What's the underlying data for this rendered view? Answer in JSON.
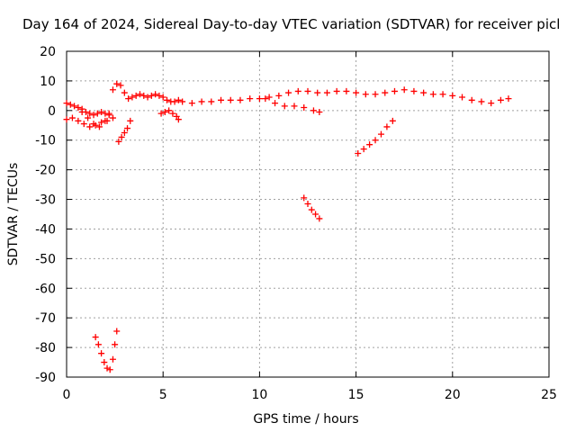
{
  "chart_data": {
    "type": "scatter",
    "title": "Day 164 of 2024, Sidereal Day-to-day VTEC variation (SDTVAR) for receiver picl",
    "xlabel": "GPS time / hours",
    "ylabel": "SDTVAR / TECUs",
    "xlim": [
      0,
      25
    ],
    "ylim": [
      -90,
      20
    ],
    "xticks": [
      "0",
      "5",
      "10",
      "15",
      "20",
      "25"
    ],
    "yticks": [
      "-90",
      "-80",
      "-70",
      "-60",
      "-50",
      "-40",
      "-30",
      "-20",
      "-10",
      "0",
      "10",
      "20"
    ],
    "grid": true,
    "marker": "plus",
    "color": "#ff0000",
    "series": [
      {
        "x": [
          0.0,
          0.2,
          0.4,
          0.6,
          0.8,
          1.0,
          1.2,
          1.4,
          1.6,
          1.8,
          2.0,
          2.2,
          2.4,
          2.6,
          2.8,
          3.0,
          3.2,
          3.4,
          3.6,
          3.8,
          4.0,
          4.2,
          4.4,
          4.6,
          4.8,
          5.0,
          5.2,
          5.4,
          5.6,
          5.8,
          6.0,
          6.5,
          7.0,
          7.5,
          8.0,
          8.5,
          9.0,
          9.5,
          10.0,
          10.5,
          11.0,
          11.5,
          12.0,
          12.5,
          13.0,
          13.5,
          14.0,
          14.5,
          15.0,
          15.5,
          16.0,
          16.5,
          17.0,
          17.5,
          18.0,
          18.5,
          19.0,
          19.5,
          20.0,
          20.5,
          21.0,
          21.5,
          22.0,
          22.5,
          22.9
        ],
        "y": [
          2.5,
          2,
          1.5,
          1,
          0.5,
          -0.5,
          -1,
          -1.5,
          -1,
          -0.5,
          -1,
          -1.5,
          7,
          9,
          8.5,
          6,
          4,
          4.5,
          5,
          5.5,
          5,
          4.5,
          5,
          5.5,
          5,
          4.5,
          3.5,
          3,
          3,
          3.5,
          3,
          2.5,
          3,
          3,
          3.5,
          3.5,
          3.5,
          4,
          4,
          4.5,
          5,
          6,
          6.5,
          6.5,
          6,
          6,
          6.5,
          6.5,
          6,
          5.5,
          5.5,
          6,
          6.5,
          7,
          6.5,
          6,
          5.5,
          5.5,
          5,
          4.5,
          3.5,
          3,
          2.5,
          3.5,
          4
        ]
      },
      {
        "x": [
          0.0,
          0.3,
          0.6,
          0.9,
          1.2,
          1.5,
          1.8,
          2.1,
          2.4
        ],
        "y": [
          -3,
          -2.5,
          -3.5,
          -4.5,
          -5.5,
          -5,
          -4,
          -3.5,
          -2.5
        ]
      },
      {
        "x": [
          0.8,
          1.1,
          1.4,
          1.7,
          2.0,
          2.2
        ],
        "y": [
          -0.5,
          -2.5,
          -4.5,
          -5.5,
          -3.5,
          -1
        ]
      },
      {
        "x": [
          4.9,
          5.1,
          5.3,
          5.5,
          5.7,
          5.8
        ],
        "y": [
          -1,
          -0.5,
          0,
          -1,
          -2,
          -3
        ]
      },
      {
        "x": [
          2.7,
          2.85,
          3.0,
          3.15,
          3.3
        ],
        "y": [
          -10.5,
          -9,
          -7.5,
          -6,
          -3.5
        ]
      },
      {
        "x": [
          10.3,
          10.8,
          11.3,
          11.8,
          12.3,
          12.8,
          13.1
        ],
        "y": [
          4,
          2.5,
          1.5,
          1.5,
          1,
          0,
          -0.5
        ]
      },
      {
        "x": [
          12.3,
          12.5,
          12.7,
          12.9,
          13.1
        ],
        "y": [
          -29.5,
          -31.5,
          -33.5,
          -35,
          -36.5
        ]
      },
      {
        "x": [
          15.1,
          15.4,
          15.7,
          16.0,
          16.3,
          16.6,
          16.9
        ],
        "y": [
          -14.5,
          -13,
          -11.5,
          -10,
          -8,
          -5.5,
          -3.5
        ]
      },
      {
        "x": [
          1.5,
          1.65,
          1.8,
          1.95,
          2.1,
          2.25,
          2.4,
          2.5,
          2.6
        ],
        "y": [
          -76.5,
          -79,
          -82,
          -85,
          -87,
          -87.5,
          -84,
          -79,
          -74.5
        ]
      }
    ]
  }
}
